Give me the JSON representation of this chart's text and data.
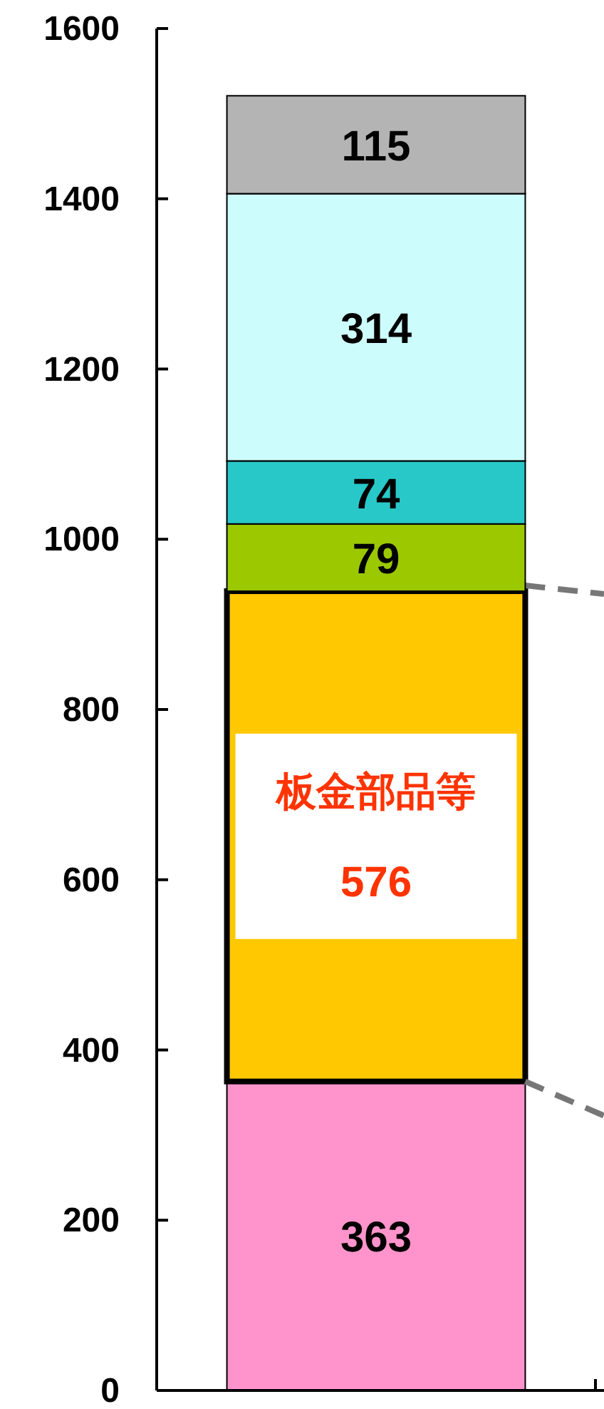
{
  "chart_data": {
    "type": "bar",
    "stacked": true,
    "categories": [
      null
    ],
    "ylim": [
      0,
      1600
    ],
    "yticks": [
      0,
      200,
      400,
      600,
      800,
      1000,
      1200,
      1400,
      1600
    ],
    "grid": false,
    "series": [
      {
        "color": "#ff94cc",
        "values": [
          363
        ],
        "value_labels": [
          "363"
        ]
      },
      {
        "name": "板金部品等",
        "color": "#ffc800",
        "values": [
          576
        ],
        "value_labels": [
          "576"
        ]
      },
      {
        "color": "#9cc800",
        "values": [
          79
        ],
        "value_labels": [
          "79"
        ]
      },
      {
        "color": "#28c8c8",
        "values": [
          74
        ],
        "value_labels": [
          "74"
        ]
      },
      {
        "color": "#ccfcfc",
        "values": [
          314
        ],
        "value_labels": [
          "314"
        ]
      },
      {
        "color": "#b4b4b4",
        "values": [
          115
        ],
        "value_labels": [
          "115"
        ]
      }
    ]
  }
}
